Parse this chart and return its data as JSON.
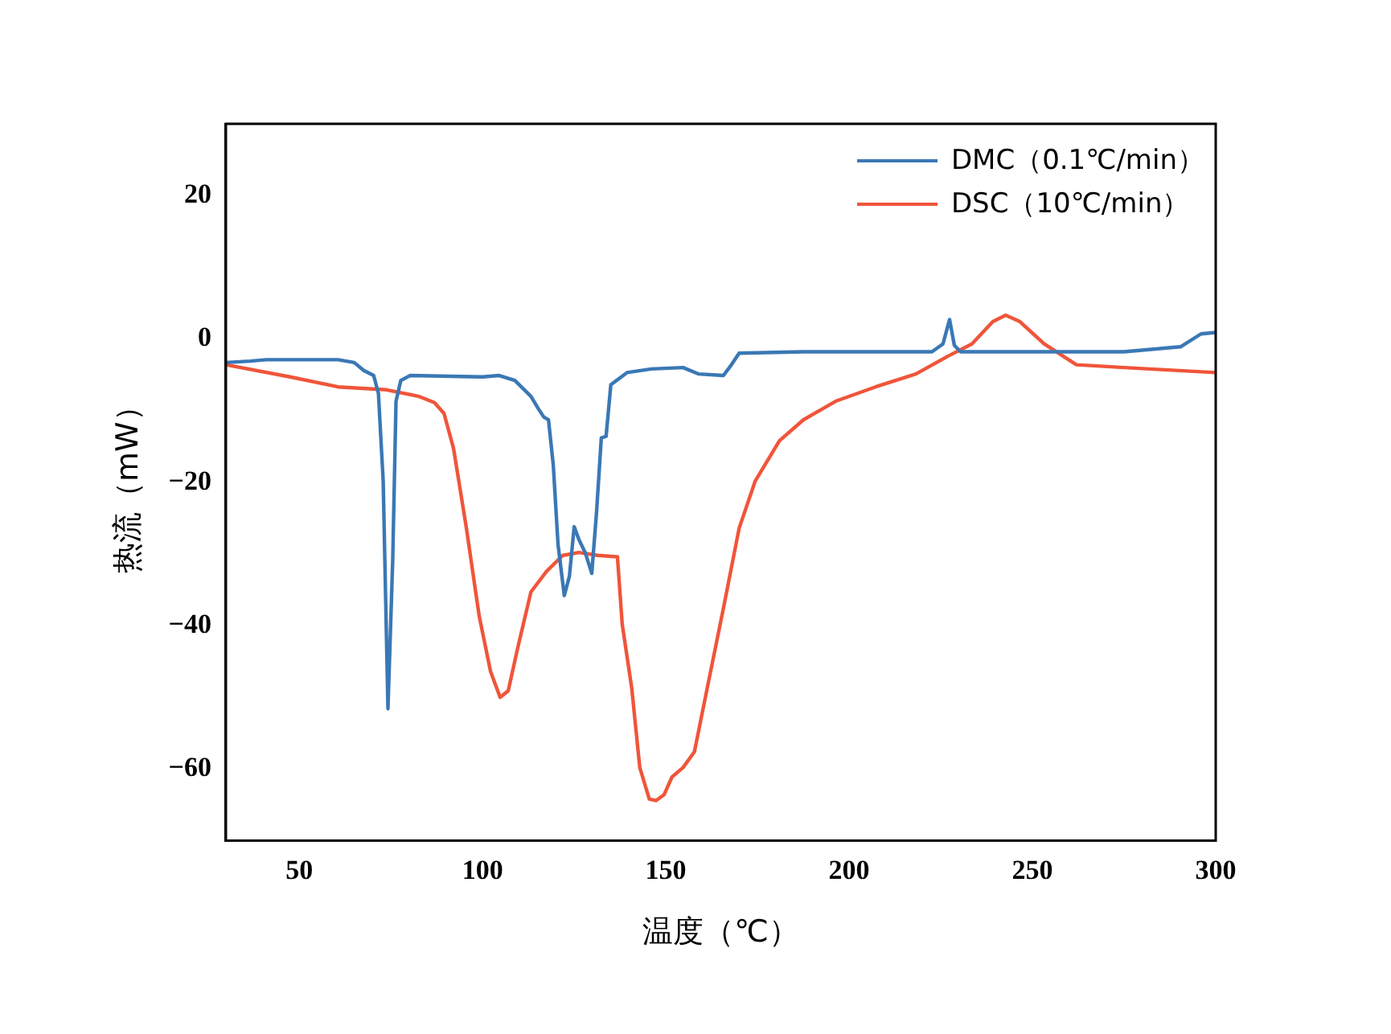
{
  "chart_data": {
    "type": "line",
    "xlabel": "温度（℃）",
    "ylabel": "热流（mW）",
    "xlim": [
      30,
      300
    ],
    "ylim": [
      -70,
      30
    ],
    "xticks": [
      50,
      100,
      150,
      200,
      250,
      300
    ],
    "yticks": [
      -60,
      -40,
      -20,
      0,
      20
    ],
    "grid": false,
    "legend": "top right",
    "marker": "none",
    "line_style": "solid",
    "series": [
      {
        "name": "DMC（0.1℃/min）",
        "color": "#3a78b5",
        "x": [
          30,
          36.6,
          41,
          60.6,
          65,
          67.6,
          70.3,
          71.6,
          72.9,
          74.2,
          75.5,
          76.4,
          77.7,
          80.3,
          100,
          104.4,
          108.8,
          113.2,
          115.3,
          116.7,
          118,
          119.3,
          120.6,
          122.3,
          123.7,
          125,
          126.3,
          128,
          129.8,
          131.1,
          132.4,
          133.7,
          135,
          139.4,
          146,
          154.7,
          159,
          165.7,
          167.9,
          170,
          187.5,
          222.6,
          225.6,
          227.4,
          228.7,
          230.4,
          275,
          290.4,
          296,
          300
        ],
        "values": [
          -3.3,
          -3.1,
          -2.9,
          -2.9,
          -3.3,
          -4.4,
          -5.1,
          -7.6,
          -19.8,
          -51.6,
          -30.9,
          -8.7,
          -5.8,
          -5.1,
          -5.3,
          -5.1,
          -5.8,
          -8,
          -9.8,
          -10.9,
          -11.3,
          -17.6,
          -28.7,
          -35.8,
          -33.1,
          -26.2,
          -28,
          -29.8,
          -32.7,
          -24.2,
          -13.8,
          -13.6,
          -6.4,
          -4.7,
          -4.2,
          -4,
          -4.9,
          -5.1,
          -3.6,
          -2,
          -1.8,
          -1.8,
          -0.7,
          2.7,
          -0.9,
          -1.8,
          -1.8,
          -1.1,
          0.7,
          0.9
        ]
      },
      {
        "name": "DSC（10℃/min）",
        "color": "#f0553a",
        "x": [
          30,
          47.5,
          60.6,
          73.8,
          82.5,
          86.9,
          89.5,
          92.1,
          95.6,
          99.1,
          102.2,
          104.8,
          107,
          109.6,
          113.2,
          117.5,
          121.9,
          126.3,
          131.5,
          136.8,
          138.1,
          140.7,
          142.9,
          145.5,
          147.3,
          149.5,
          151.7,
          154.7,
          157.8,
          161.3,
          165.7,
          170,
          174.4,
          181,
          187.5,
          196.3,
          207.2,
          218.2,
          227,
          233.5,
          239.2,
          242.7,
          246.6,
          253.2,
          262,
          275,
          300
        ],
        "values": [
          -3.6,
          -5.3,
          -6.7,
          -7.1,
          -8,
          -8.9,
          -10.4,
          -15.3,
          -26.4,
          -38.7,
          -46.4,
          -50,
          -49.1,
          -43.1,
          -35.3,
          -32.4,
          -30.2,
          -29.8,
          -30.2,
          -30.4,
          -39.8,
          -48.7,
          -59.8,
          -64.2,
          -64.4,
          -63.6,
          -61.1,
          -59.8,
          -57.6,
          -48.7,
          -37.6,
          -26.4,
          -19.8,
          -14.2,
          -11.3,
          -8.7,
          -6.7,
          -4.9,
          -2.4,
          -0.7,
          2.4,
          3.3,
          2.4,
          -0.7,
          -3.6,
          -4,
          -4.7
        ]
      }
    ]
  }
}
